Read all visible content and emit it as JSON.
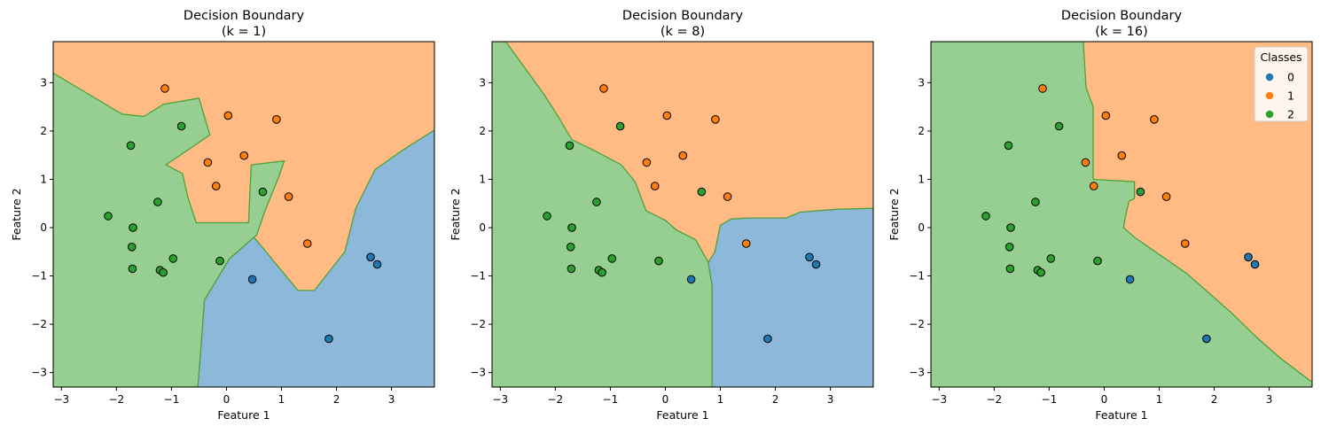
{
  "colors": {
    "class0": "#1f77b4",
    "class1": "#ff7f0e",
    "class2": "#2ca02c",
    "region0": "#8db8da",
    "region1": "#ffbb83",
    "region2": "#97cf93",
    "boundary": "#4aa33a"
  },
  "chart_data": [
    {
      "type": "scatter",
      "title": "Decision Boundary",
      "subtitle": "(k = 1)",
      "xlabel": "Feature 1",
      "ylabel": "Feature 2",
      "xlim": [
        -3.15,
        3.78
      ],
      "ylim": [
        -3.3,
        3.85
      ],
      "xticks": [
        -3,
        -2,
        -1,
        0,
        1,
        2,
        3
      ],
      "yticks": [
        -3,
        -2,
        -1,
        0,
        1,
        2,
        3
      ],
      "background_class": "1",
      "regions": [
        {
          "class": "2",
          "points": [
            [
              -3.15,
              3.2
            ],
            [
              -1.9,
              2.35
            ],
            [
              -1.5,
              2.3
            ],
            [
              -1.15,
              2.55
            ],
            [
              -0.5,
              2.68
            ],
            [
              -0.3,
              1.92
            ],
            [
              -1.1,
              1.3
            ],
            [
              -0.8,
              1.12
            ],
            [
              -0.7,
              0.62
            ],
            [
              -0.55,
              0.1
            ],
            [
              0.4,
              0.1
            ],
            [
              0.45,
              1.3
            ],
            [
              1.05,
              1.38
            ],
            [
              0.95,
              1.05
            ],
            [
              0.7,
              0.35
            ],
            [
              0.55,
              -0.15
            ],
            [
              0.4,
              -0.3
            ],
            [
              0.05,
              -0.65
            ],
            [
              -0.4,
              -1.5
            ],
            [
              -0.45,
              -2.3
            ],
            [
              -0.52,
              -3.3
            ],
            [
              -3.15,
              -3.3
            ]
          ]
        },
        {
          "class": "0",
          "points": [
            [
              -0.52,
              -3.3
            ],
            [
              -0.45,
              -2.3
            ],
            [
              -0.4,
              -1.5
            ],
            [
              0.05,
              -0.65
            ],
            [
              0.4,
              -0.3
            ],
            [
              0.5,
              -0.2
            ],
            [
              1.3,
              -1.3
            ],
            [
              1.6,
              -1.3
            ],
            [
              2.15,
              -0.5
            ],
            [
              2.35,
              0.4
            ],
            [
              2.7,
              1.2
            ],
            [
              3.2,
              1.6
            ],
            [
              3.78,
              2.02
            ],
            [
              3.78,
              -3.3
            ]
          ]
        }
      ],
      "series": [
        {
          "name": "0",
          "x": [
            2.62,
            2.74,
            0.47,
            1.86
          ],
          "y": [
            -0.61,
            -0.76,
            -1.07,
            -2.3
          ]
        },
        {
          "name": "1",
          "x": [
            -1.12,
            0.03,
            0.91,
            -0.34,
            0.32,
            -0.19,
            1.13,
            1.47
          ],
          "y": [
            2.88,
            2.32,
            2.24,
            1.35,
            1.49,
            0.86,
            0.64,
            -0.33
          ]
        },
        {
          "name": "2",
          "x": [
            -1.74,
            -0.82,
            -1.25,
            -2.15,
            -1.7,
            -1.72,
            -1.71,
            -0.97,
            -1.21,
            -1.15,
            -0.12,
            0.66
          ],
          "y": [
            1.7,
            2.1,
            0.53,
            0.24,
            0.0,
            -0.4,
            -0.85,
            -0.64,
            -0.88,
            -0.93,
            -0.69,
            0.74
          ]
        }
      ]
    },
    {
      "type": "scatter",
      "title": "Decision Boundary",
      "subtitle": "(k = 8)",
      "xlabel": "Feature 1",
      "ylabel": "Feature 2",
      "xlim": [
        -3.15,
        3.78
      ],
      "ylim": [
        -3.3,
        3.85
      ],
      "xticks": [
        -3,
        -2,
        -1,
        0,
        1,
        2,
        3
      ],
      "yticks": [
        -3,
        -2,
        -1,
        0,
        1,
        2,
        3
      ],
      "background_class": "1",
      "regions": [
        {
          "class": "2",
          "points": [
            [
              -3.15,
              3.85
            ],
            [
              -2.9,
              3.85
            ],
            [
              -2.55,
              3.3
            ],
            [
              -2.2,
              2.75
            ],
            [
              -1.95,
              2.3
            ],
            [
              -1.7,
              1.82
            ],
            [
              -1.3,
              1.6
            ],
            [
              -0.8,
              1.3
            ],
            [
              -0.55,
              0.95
            ],
            [
              -0.35,
              0.35
            ],
            [
              0.0,
              0.15
            ],
            [
              0.2,
              -0.05
            ],
            [
              0.55,
              -0.25
            ],
            [
              0.78,
              -0.72
            ],
            [
              0.85,
              -1.2
            ],
            [
              0.85,
              -3.3
            ],
            [
              -3.15,
              -3.3
            ]
          ]
        },
        {
          "class": "0",
          "points": [
            [
              0.85,
              -3.3
            ],
            [
              0.85,
              -1.2
            ],
            [
              0.78,
              -0.72
            ],
            [
              0.9,
              -0.5
            ],
            [
              1.0,
              0.05
            ],
            [
              1.2,
              0.18
            ],
            [
              1.55,
              0.2
            ],
            [
              2.2,
              0.2
            ],
            [
              2.45,
              0.32
            ],
            [
              3.1,
              0.38
            ],
            [
              3.78,
              0.4
            ],
            [
              3.78,
              -3.3
            ]
          ]
        }
      ],
      "series": [
        {
          "name": "0",
          "x": [
            2.62,
            2.74,
            0.47,
            1.86
          ],
          "y": [
            -0.61,
            -0.76,
            -1.07,
            -2.3
          ]
        },
        {
          "name": "1",
          "x": [
            -1.12,
            0.03,
            0.91,
            -0.34,
            0.32,
            -0.19,
            1.13,
            1.47
          ],
          "y": [
            2.88,
            2.32,
            2.24,
            1.35,
            1.49,
            0.86,
            0.64,
            -0.33
          ]
        },
        {
          "name": "2",
          "x": [
            -1.74,
            -0.82,
            -1.25,
            -2.15,
            -1.7,
            -1.72,
            -1.71,
            -0.97,
            -1.21,
            -1.15,
            -0.12,
            0.66
          ],
          "y": [
            1.7,
            2.1,
            0.53,
            0.24,
            0.0,
            -0.4,
            -0.85,
            -0.64,
            -0.88,
            -0.93,
            -0.69,
            0.74
          ]
        }
      ]
    },
    {
      "type": "scatter",
      "title": "Decision Boundary",
      "subtitle": "(k = 16)",
      "xlabel": "Feature 1",
      "ylabel": "Feature 2",
      "xlim": [
        -3.15,
        3.78
      ],
      "ylim": [
        -3.3,
        3.85
      ],
      "xticks": [
        -3,
        -2,
        -1,
        0,
        1,
        2,
        3
      ],
      "yticks": [
        -3,
        -2,
        -1,
        0,
        1,
        2,
        3
      ],
      "background_class": "1",
      "legend": {
        "title": "Classes",
        "entries": [
          "0",
          "1",
          "2"
        ],
        "location": "upper right"
      },
      "regions": [
        {
          "class": "2",
          "points": [
            [
              -3.15,
              3.85
            ],
            [
              -0.38,
              3.85
            ],
            [
              -0.33,
              2.9
            ],
            [
              -0.2,
              2.5
            ],
            [
              -0.2,
              1.0
            ],
            [
              0.55,
              0.95
            ],
            [
              0.55,
              0.6
            ],
            [
              0.45,
              0.55
            ],
            [
              0.4,
              0.3
            ],
            [
              0.35,
              0.0
            ],
            [
              0.55,
              -0.2
            ],
            [
              1.5,
              -0.95
            ],
            [
              2.3,
              -1.75
            ],
            [
              2.8,
              -2.3
            ],
            [
              3.2,
              -2.7
            ],
            [
              3.78,
              -3.2
            ],
            [
              3.78,
              -3.3
            ],
            [
              -3.15,
              -3.3
            ]
          ]
        }
      ],
      "series": [
        {
          "name": "0",
          "x": [
            2.62,
            2.74,
            0.47,
            1.86
          ],
          "y": [
            -0.61,
            -0.76,
            -1.07,
            -2.3
          ]
        },
        {
          "name": "1",
          "x": [
            -1.12,
            0.03,
            0.91,
            -0.34,
            0.32,
            -0.19,
            1.13,
            1.47
          ],
          "y": [
            2.88,
            2.32,
            2.24,
            1.35,
            1.49,
            0.86,
            0.64,
            -0.33
          ]
        },
        {
          "name": "2",
          "x": [
            -1.74,
            -0.82,
            -1.25,
            -2.15,
            -1.7,
            -1.72,
            -1.71,
            -0.97,
            -1.21,
            -1.15,
            -0.12,
            0.66
          ],
          "y": [
            1.7,
            2.1,
            0.53,
            0.24,
            0.0,
            -0.4,
            -0.85,
            -0.64,
            -0.88,
            -0.93,
            -0.69,
            0.74
          ]
        }
      ]
    }
  ]
}
